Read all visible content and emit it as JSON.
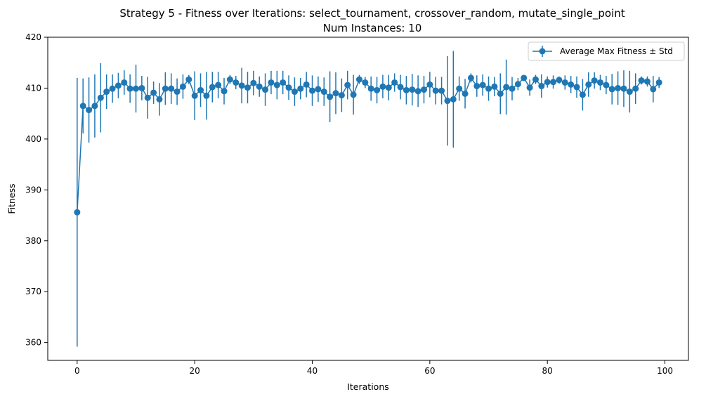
{
  "chart_data": {
    "type": "line",
    "title": "Strategy 5 - Fitness over Iterations: select_tournament, crossover_random, mutate_single_point",
    "subtitle": "Num Instances: 10",
    "xlabel": "Iterations",
    "ylabel": "Fitness",
    "xlim": [
      -5,
      104
    ],
    "ylim": [
      356.5,
      420
    ],
    "xticks": [
      0,
      20,
      40,
      60,
      80,
      100
    ],
    "yticks": [
      360,
      370,
      380,
      390,
      400,
      410,
      420
    ],
    "grid": false,
    "legend_position": "top-right",
    "series": [
      {
        "name": "Average Max Fitness ± Std",
        "color": "#1f77b4",
        "x": [
          0,
          1,
          2,
          3,
          4,
          5,
          6,
          7,
          8,
          9,
          10,
          11,
          12,
          13,
          14,
          15,
          16,
          17,
          18,
          19,
          20,
          21,
          22,
          23,
          24,
          25,
          26,
          27,
          28,
          29,
          30,
          31,
          32,
          33,
          34,
          35,
          36,
          37,
          38,
          39,
          40,
          41,
          42,
          43,
          44,
          45,
          46,
          47,
          48,
          49,
          50,
          51,
          52,
          53,
          54,
          55,
          56,
          57,
          58,
          59,
          60,
          61,
          62,
          63,
          64,
          65,
          66,
          67,
          68,
          69,
          70,
          71,
          72,
          73,
          74,
          75,
          76,
          77,
          78,
          79,
          80,
          81,
          82,
          83,
          84,
          85,
          86,
          87,
          88,
          89,
          90,
          91,
          92,
          93,
          94,
          95,
          96,
          97,
          98,
          99
        ],
        "y": [
          385.6,
          406.5,
          405.7,
          406.5,
          408.1,
          409.3,
          409.9,
          410.5,
          411.1,
          409.9,
          409.9,
          410.0,
          408.1,
          409.1,
          407.8,
          409.9,
          409.9,
          409.3,
          410.3,
          411.7,
          408.5,
          409.6,
          408.5,
          410.2,
          410.6,
          409.4,
          411.7,
          411.1,
          410.5,
          410.1,
          411.0,
          410.3,
          409.7,
          411.1,
          410.6,
          411.1,
          410.1,
          409.3,
          409.9,
          410.7,
          409.5,
          409.8,
          409.3,
          408.3,
          409.0,
          408.6,
          410.6,
          408.7,
          411.7,
          411.1,
          409.9,
          409.6,
          410.3,
          410.1,
          411.1,
          410.2,
          409.6,
          409.7,
          409.4,
          409.7,
          410.7,
          409.5,
          409.5,
          407.5,
          407.8,
          409.9,
          408.9,
          412.0,
          410.4,
          410.6,
          409.9,
          410.3,
          408.9,
          410.2,
          409.9,
          410.8,
          412.0,
          410.1,
          411.7,
          410.4,
          411.2,
          411.2,
          411.6,
          411.1,
          410.7,
          410.2,
          408.7,
          410.7,
          411.5,
          411.1,
          410.6,
          409.8,
          410.0,
          409.9,
          409.3,
          409.9,
          411.5,
          411.3,
          409.8,
          411.1
        ],
        "std": [
          26.4,
          5.4,
          6.4,
          6.2,
          6.8,
          3.4,
          2.8,
          2.5,
          2.4,
          2.8,
          4.7,
          2.4,
          4.1,
          2.2,
          3.2,
          3.2,
          3.0,
          2.6,
          2.4,
          0.9,
          4.8,
          3.3,
          4.7,
          3.0,
          2.6,
          2.6,
          0.9,
          1.3,
          3.5,
          3.1,
          2.4,
          2.0,
          3.2,
          2.3,
          2.8,
          2.3,
          2.4,
          2.8,
          2.1,
          2.5,
          3.0,
          2.5,
          2.8,
          5.0,
          4.1,
          3.3,
          2.8,
          3.9,
          0.9,
          1.1,
          2.4,
          2.6,
          2.3,
          2.5,
          1.8,
          2.4,
          2.8,
          3.1,
          3.1,
          2.7,
          2.5,
          2.7,
          2.7,
          8.8,
          9.5,
          2.4,
          2.9,
          0.9,
          2.1,
          2.1,
          2.4,
          1.9,
          4.0,
          5.4,
          2.3,
          1.2,
          0.5,
          1.6,
          0.9,
          2.3,
          1.1,
          1.3,
          0.7,
          1.4,
          1.7,
          2.1,
          3.1,
          2.4,
          1.6,
          1.5,
          1.8,
          3.0,
          3.3,
          3.6,
          4.1,
          3.0,
          0.8,
          1.0,
          2.6,
          1.1
        ]
      }
    ]
  }
}
